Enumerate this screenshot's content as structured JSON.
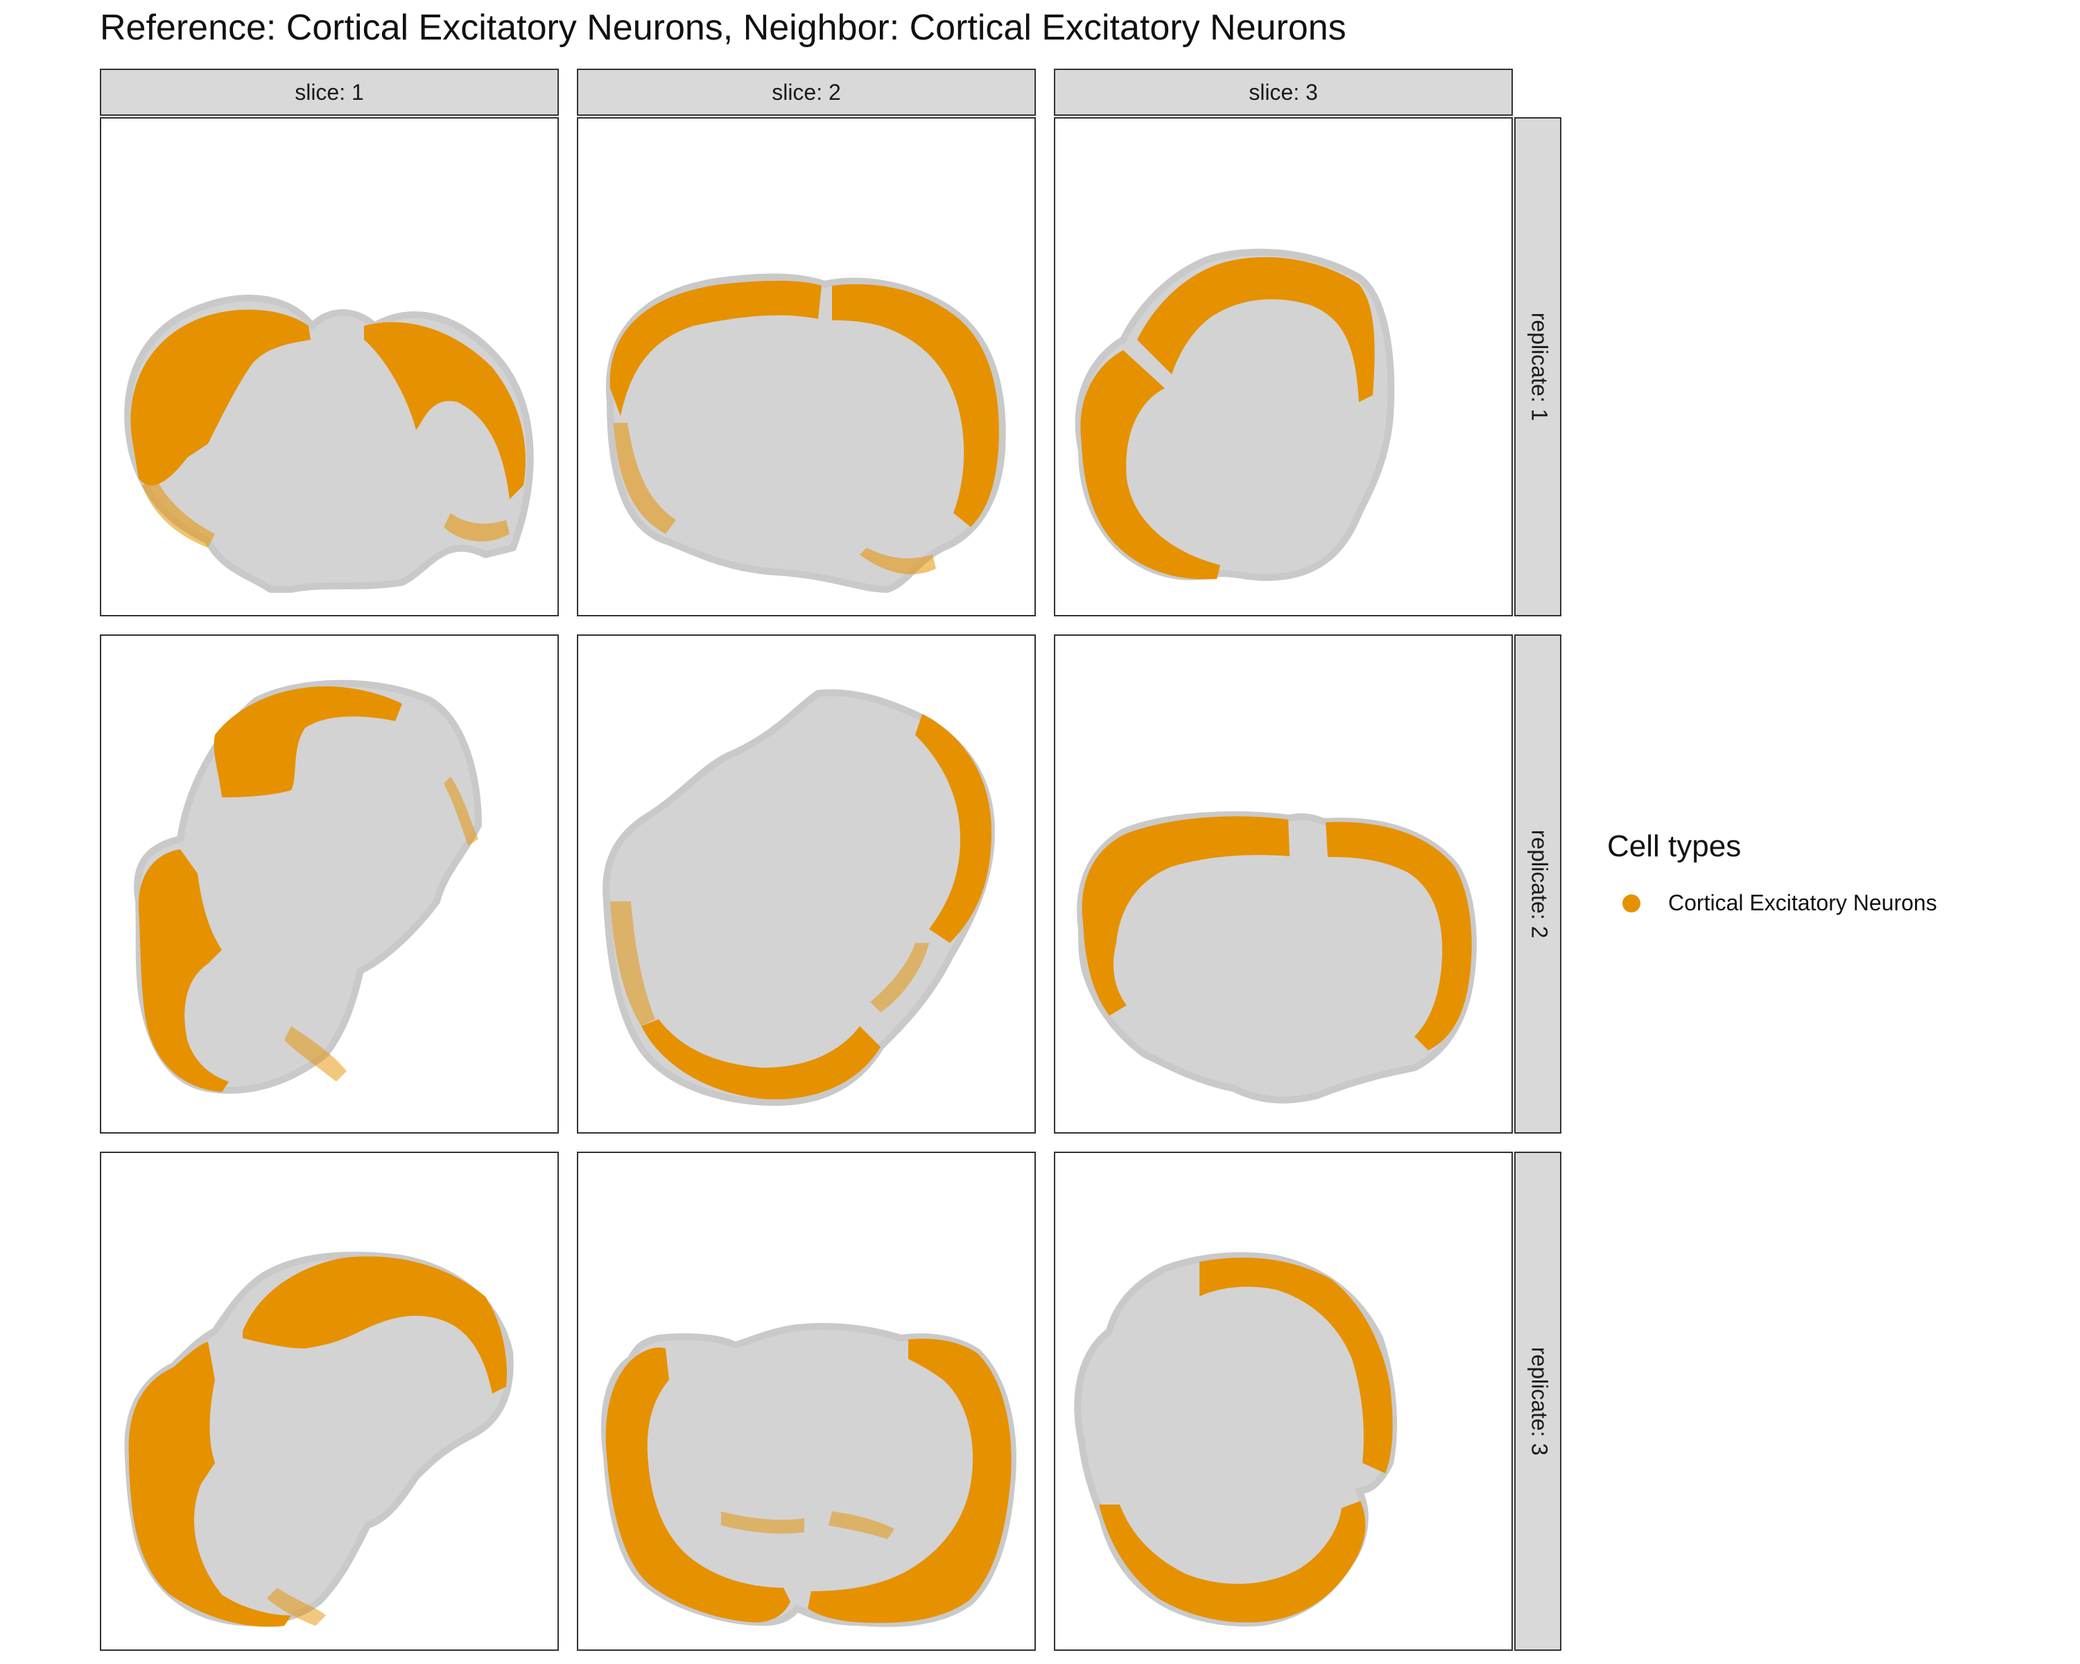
{
  "chart_data": {
    "type": "scatter",
    "title": "Reference: Cortical Excitatory Neurons, Neighbor: Cortical Excitatory Neurons",
    "facet_columns": [
      "slice: 1",
      "slice: 2",
      "slice: 3"
    ],
    "facet_rows": [
      "replicate: 1",
      "replicate: 2",
      "replicate: 3"
    ],
    "legend": {
      "title": "Cell types",
      "placement": "right",
      "entries": [
        {
          "label": "Cortical Excitatory Neurons",
          "color": "#E69100"
        }
      ]
    },
    "background_cells_color": "#D3D3D3",
    "grid": false
  }
}
